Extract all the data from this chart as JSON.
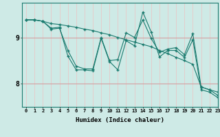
{
  "xlabel": "Humidex (Indice chaleur)",
  "bg_color": "#ceeae6",
  "line_color": "#1a7a6e",
  "vgrid_color": "#e8c8c8",
  "hgrid_color": "#d4a0a0",
  "xlim": [
    -0.5,
    23
  ],
  "ylim": [
    7.5,
    9.75
  ],
  "xticks": [
    0,
    1,
    2,
    3,
    4,
    5,
    6,
    7,
    8,
    9,
    10,
    11,
    12,
    13,
    14,
    15,
    16,
    17,
    18,
    19,
    20,
    21,
    22,
    23
  ],
  "yticks": [
    8,
    9
  ],
  "series": [
    [
      9.38,
      9.38,
      9.35,
      9.3,
      9.28,
      9.25,
      9.22,
      9.18,
      9.15,
      9.1,
      9.06,
      9.0,
      8.95,
      8.9,
      8.85,
      8.8,
      8.72,
      8.65,
      8.57,
      8.5,
      8.42,
      7.93,
      7.87,
      7.82
    ],
    [
      9.38,
      9.38,
      9.35,
      9.18,
      9.2,
      8.72,
      8.38,
      8.32,
      8.32,
      9.0,
      8.5,
      8.52,
      9.1,
      9.0,
      9.38,
      8.98,
      8.68,
      8.75,
      8.78,
      8.63,
      9.08,
      7.93,
      7.87,
      7.75
    ],
    [
      9.38,
      9.38,
      9.35,
      9.2,
      9.22,
      8.6,
      8.3,
      8.3,
      8.28,
      8.98,
      8.48,
      8.3,
      8.93,
      8.82,
      9.55,
      9.12,
      8.58,
      8.72,
      8.72,
      8.57,
      8.95,
      7.87,
      7.82,
      7.7
    ]
  ]
}
